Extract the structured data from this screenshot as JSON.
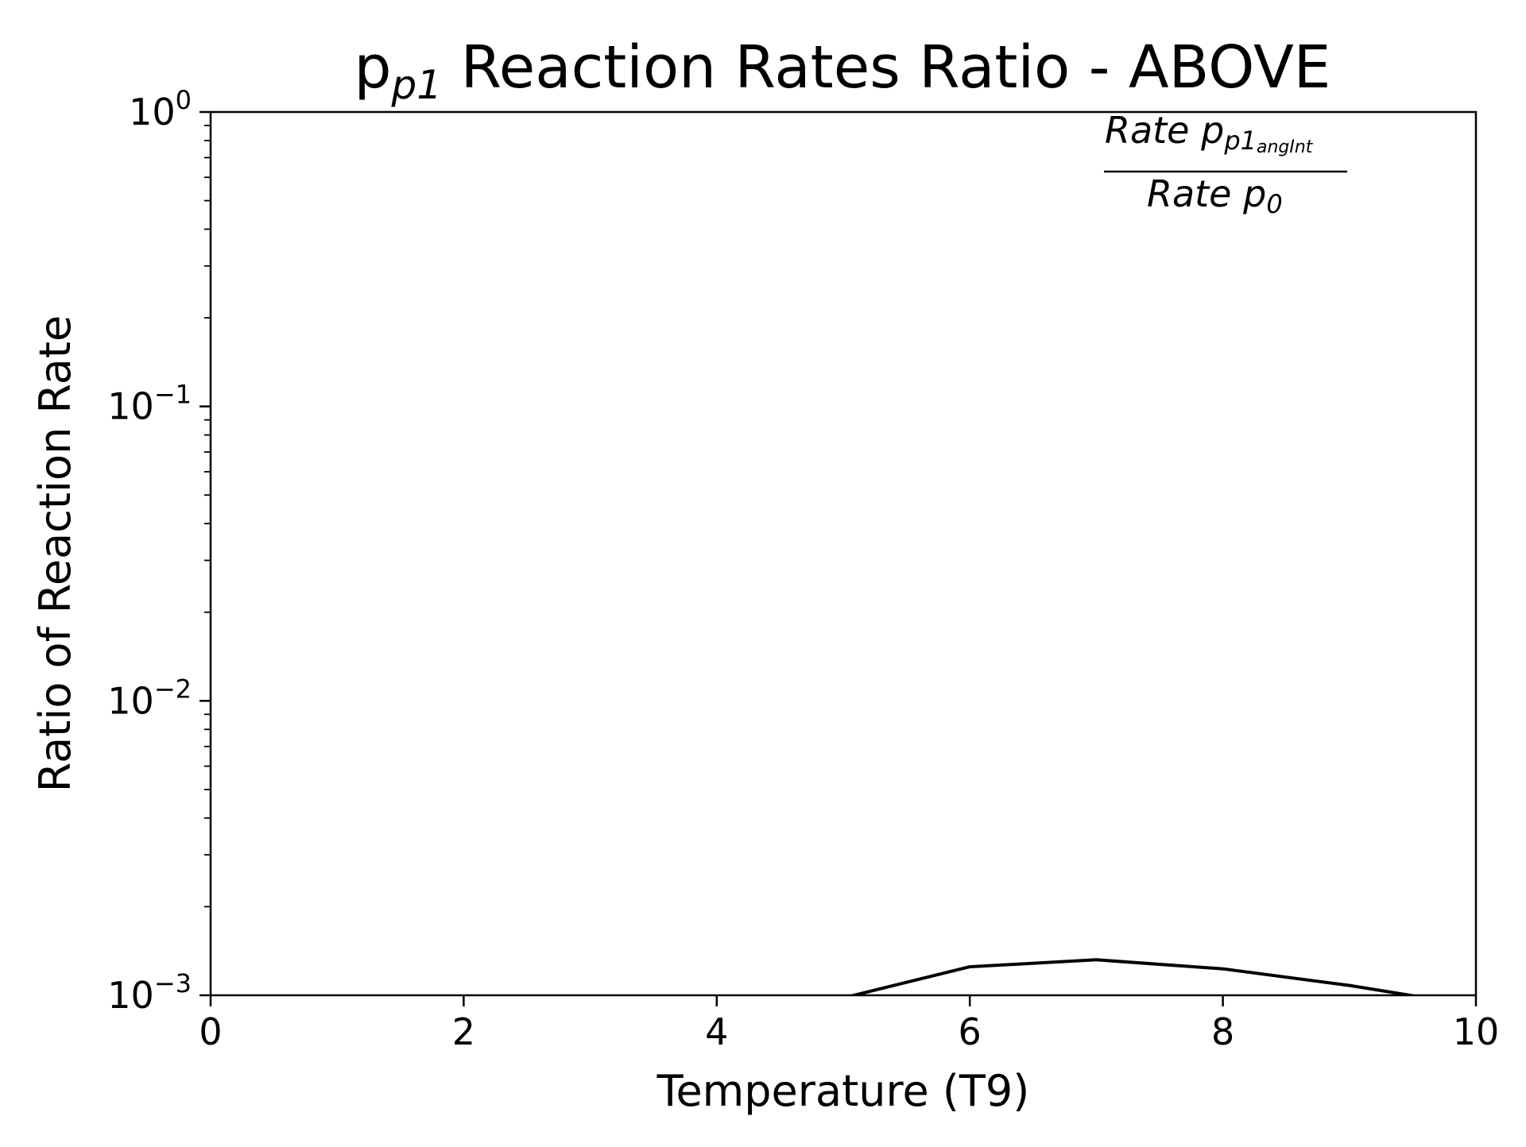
{
  "chart_data": {
    "type": "line",
    "title": {
      "main": "p",
      "subscript": "p1",
      "rest": " Reaction Rates Ratio - ABOVE"
    },
    "xlabel": "Temperature (T9)",
    "ylabel": "Ratio of Reaction Rate",
    "xlim": [
      0,
      10
    ],
    "ylim": [
      0.001,
      1
    ],
    "yscale": "log",
    "grid": false,
    "x_ticks": [
      {
        "value": 0,
        "label": "0"
      },
      {
        "value": 2,
        "label": "2"
      },
      {
        "value": 4,
        "label": "4"
      },
      {
        "value": 6,
        "label": "6"
      },
      {
        "value": 8,
        "label": "8"
      },
      {
        "value": 10,
        "label": "10"
      }
    ],
    "y_ticks": [
      {
        "value": 0.001,
        "base": "10",
        "exp": "−3"
      },
      {
        "value": 0.01,
        "base": "10",
        "exp": "−2"
      },
      {
        "value": 0.1,
        "base": "10",
        "exp": "−1"
      },
      {
        "value": 1,
        "base": "10",
        "exp": "0"
      }
    ],
    "annotation": {
      "numerator": {
        "text": "Rate p",
        "sub": "p1",
        "subsub": "angInt"
      },
      "denominator": {
        "text": "Rate p",
        "sub": "0"
      }
    },
    "series": [
      {
        "color": "#000000",
        "x": [
          5,
          6,
          7,
          8,
          9,
          10
        ],
        "y": [
          0.00098,
          0.00125,
          0.00132,
          0.00123,
          0.00108,
          0.00092
        ]
      }
    ]
  }
}
